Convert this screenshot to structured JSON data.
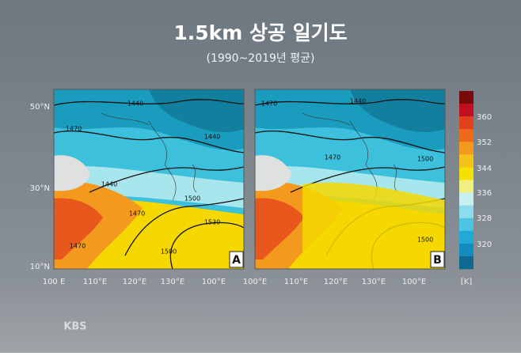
{
  "header": {
    "title": "1.5km 상공 일기도",
    "subtitle": "(1990~2019년 평균)"
  },
  "lat_labels": [
    "50°N",
    "30°N",
    "10°N"
  ],
  "maps": [
    {
      "label": "A",
      "lon_labels": [
        "100 E",
        "110°E",
        "120°E",
        "130°E",
        "100°E"
      ],
      "contour_labels": [
        1440,
        1440,
        1470,
        1440,
        1470,
        1500,
        1530,
        1500,
        1470
      ]
    },
    {
      "label": "B",
      "lon_labels": [
        "100°E",
        "110°E",
        "120°E",
        "130°E",
        "100°E"
      ],
      "contour_labels": [
        1470,
        1440,
        1470,
        1500,
        1500
      ]
    }
  ],
  "colorbar": {
    "labels": [
      360,
      352,
      344,
      336,
      328,
      320
    ],
    "unit": "[K]"
  },
  "footer": {
    "logo": "KBS"
  }
}
